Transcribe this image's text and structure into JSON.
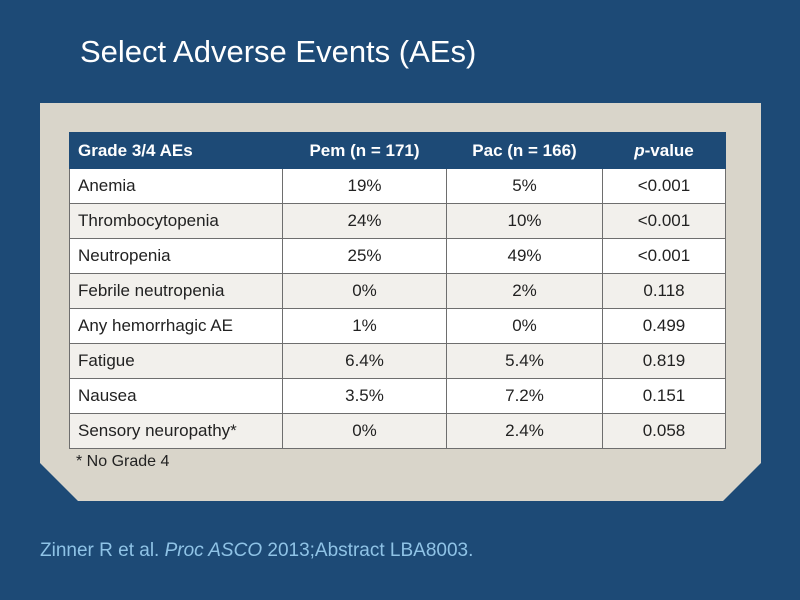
{
  "slide": {
    "title": "Select Adverse Events (AEs)"
  },
  "table": {
    "headers": {
      "col1": "Grade 3/4 AEs",
      "col2": "Pem (n = 171)",
      "col3": "Pac (n = 166)",
      "col4_italic": "p",
      "col4_rest": "-value"
    },
    "rows": [
      {
        "ae": "Anemia",
        "pem": "19%",
        "pac": "5%",
        "p": "<0.001"
      },
      {
        "ae": "Thrombocytopenia",
        "pem": "24%",
        "pac": "10%",
        "p": "<0.001"
      },
      {
        "ae": "Neutropenia",
        "pem": "25%",
        "pac": "49%",
        "p": "<0.001"
      },
      {
        "ae": "Febrile neutropenia",
        "pem": "0%",
        "pac": "2%",
        "p": "0.118"
      },
      {
        "ae": "Any hemorrhagic AE",
        "pem": "1%",
        "pac": "0%",
        "p": "0.499"
      },
      {
        "ae": "Fatigue",
        "pem": "6.4%",
        "pac": "5.4%",
        "p": "0.819"
      },
      {
        "ae": "Nausea",
        "pem": "3.5%",
        "pac": "7.2%",
        "p": "0.151"
      },
      {
        "ae": "Sensory neuropathy*",
        "pem": "0%",
        "pac": "2.4%",
        "p": "0.058"
      }
    ]
  },
  "footnote": "* No Grade 4",
  "citation": {
    "authors": "Zinner R et al. ",
    "journal": "Proc ASCO",
    "rest": " 2013;Abstract LBA8003."
  },
  "colors": {
    "background": "#1d4a76",
    "panel": "#d9d5ca",
    "header_bg": "#1d4a76",
    "citation_text": "#8fc3e6"
  }
}
